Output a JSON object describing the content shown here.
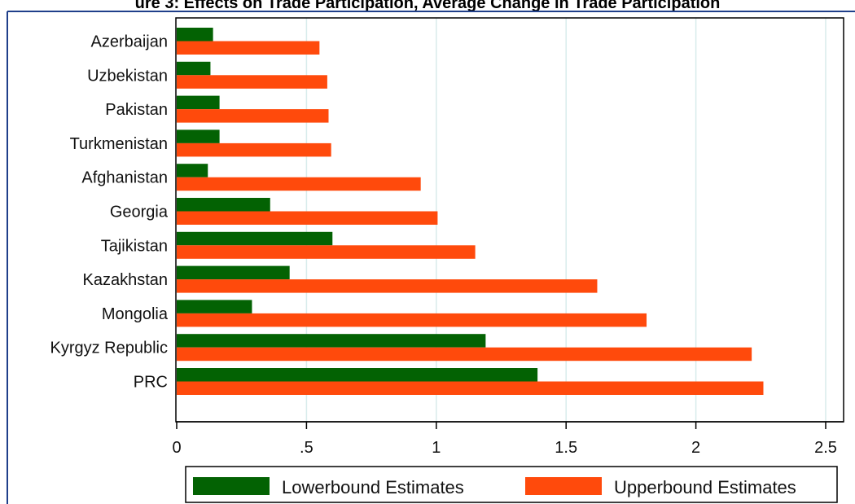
{
  "colors": {
    "lower": "#036203",
    "upper": "#ff4a0c",
    "grid": "#d8ecec",
    "frame": "#1f3f8a"
  },
  "chart_data": {
    "type": "bar",
    "orientation": "horizontal",
    "title": "ure 3: Effects on Trade Participation, Average Change in Trade Participation",
    "categories": [
      "Azerbaijan",
      "Uzbekistan",
      "Pakistan",
      "Turkmenistan",
      "Afghanistan",
      "Georgia",
      "Tajikistan",
      "Kazakhstan",
      "Mongolia",
      "Kyrgyz Republic",
      "PRC"
    ],
    "series": [
      {
        "name": "Lowerbound Estimates",
        "values": [
          0.14,
          0.13,
          0.165,
          0.165,
          0.12,
          0.36,
          0.6,
          0.435,
          0.29,
          1.19,
          1.39
        ]
      },
      {
        "name": "Upperbound Estimates",
        "values": [
          0.55,
          0.58,
          0.585,
          0.595,
          0.94,
          1.005,
          1.15,
          1.62,
          1.81,
          2.215,
          2.26
        ]
      }
    ],
    "xlim": [
      0,
      2.5
    ],
    "xticks": [
      0,
      0.5,
      1,
      1.5,
      2,
      2.5
    ],
    "xtick_labels": [
      "0",
      ".5",
      "1",
      "1.5",
      "2",
      "2.5"
    ],
    "grid": "vertical",
    "legend_position": "bottom"
  }
}
